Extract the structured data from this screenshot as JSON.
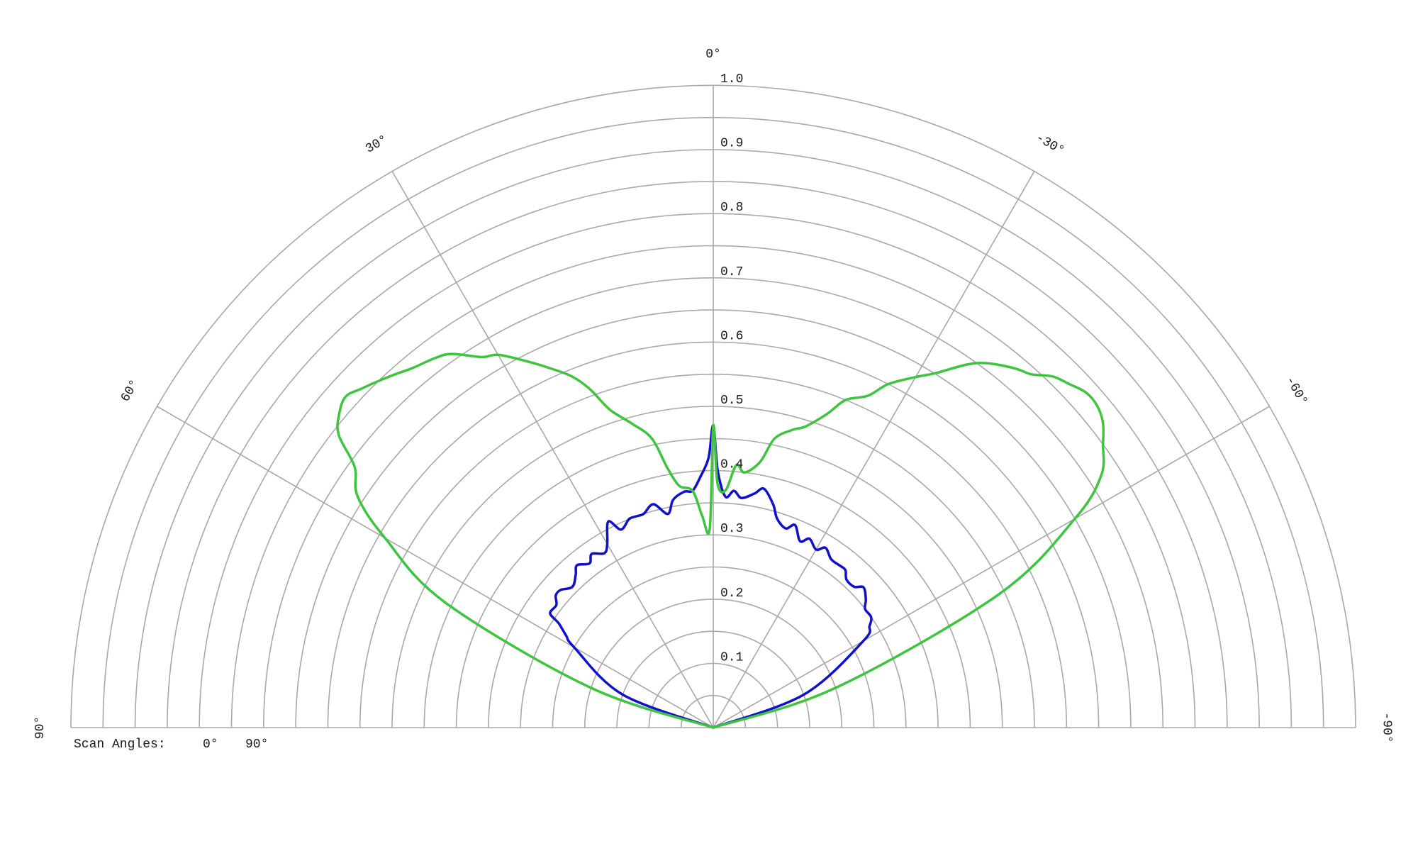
{
  "chart_data": {
    "type": "line",
    "subtype": "polar-half",
    "title": "",
    "radial_axis": {
      "range": [
        0,
        1.0
      ],
      "ticks": [
        0.1,
        0.2,
        0.3,
        0.4,
        0.5,
        0.6,
        0.7,
        0.8,
        0.9,
        1.0
      ],
      "tick_labels": [
        "0.1",
        "0.2",
        "0.3",
        "0.4",
        "0.5",
        "0.6",
        "0.7",
        "0.8",
        "0.9",
        "1.0"
      ]
    },
    "angular_axis": {
      "range_deg": [
        -90,
        90
      ],
      "direction": "counterclockwise-from-top",
      "ticks": [
        90,
        60,
        30,
        0,
        -30,
        -60,
        -90
      ],
      "tick_labels": [
        "90°",
        "60°",
        "30°",
        "0°",
        "-30°",
        "-60°",
        "-90°"
      ]
    },
    "grid": true,
    "legend": {
      "title": "Scan Angles:",
      "placement": "bottom-left"
    },
    "series": [
      {
        "name": "0°",
        "color": "#1010cc",
        "theta_deg": [
          90,
          70,
          60,
          58,
          56,
          55,
          52,
          50,
          48,
          45,
          42,
          40,
          37,
          35,
          32,
          30,
          27,
          25,
          22,
          20,
          18,
          15,
          12,
          10,
          7,
          5,
          3,
          1,
          0,
          -1,
          -3,
          -5,
          -7,
          -10,
          -12,
          -15,
          -17,
          -20,
          -22,
          -25,
          -27,
          -30,
          -32,
          -35,
          -38,
          -40,
          -42,
          -45,
          -47,
          -50,
          -52,
          -55,
          -57,
          -60,
          -70,
          -90
        ],
        "r": [
          0.0,
          0.15,
          0.25,
          0.27,
          0.29,
          0.31,
          0.31,
          0.32,
          0.32,
          0.31,
          0.32,
          0.33,
          0.32,
          0.33,
          0.32,
          0.33,
          0.36,
          0.34,
          0.35,
          0.35,
          0.35,
          0.36,
          0.34,
          0.36,
          0.37,
          0.37,
          0.39,
          0.42,
          0.47,
          0.4,
          0.36,
          0.37,
          0.36,
          0.37,
          0.38,
          0.36,
          0.34,
          0.33,
          0.34,
          0.32,
          0.33,
          0.32,
          0.33,
          0.32,
          0.32,
          0.32,
          0.31,
          0.31,
          0.32,
          0.31,
          0.3,
          0.3,
          0.29,
          0.27,
          0.15,
          0.0
        ]
      },
      {
        "name": "90°",
        "color": "#3ec43e",
        "theta_deg": [
          90,
          72,
          65,
          60,
          57,
          54,
          52,
          50,
          48,
          46,
          44,
          42,
          40,
          37,
          35,
          32,
          30,
          27,
          25,
          22,
          20,
          18,
          15,
          12,
          10,
          8,
          5,
          3,
          1,
          0,
          -1,
          -3,
          -5,
          -7,
          -10,
          -12,
          -15,
          -17,
          -20,
          -22,
          -25,
          -27,
          -30,
          -32,
          -35,
          -37,
          -40,
          -42,
          -44,
          -46,
          -48,
          -50,
          -52,
          -54,
          -57,
          -60,
          -65,
          -72,
          -90
        ],
        "r": [
          0.0,
          0.2,
          0.46,
          0.59,
          0.66,
          0.69,
          0.74,
          0.76,
          0.77,
          0.76,
          0.75,
          0.74,
          0.73,
          0.72,
          0.71,
          0.68,
          0.67,
          0.64,
          0.62,
          0.59,
          0.56,
          0.52,
          0.49,
          0.46,
          0.41,
          0.38,
          0.37,
          0.33,
          0.31,
          0.47,
          0.38,
          0.37,
          0.41,
          0.4,
          0.42,
          0.46,
          0.48,
          0.49,
          0.52,
          0.55,
          0.57,
          0.6,
          0.63,
          0.65,
          0.69,
          0.71,
          0.73,
          0.74,
          0.76,
          0.77,
          0.78,
          0.78,
          0.77,
          0.75,
          0.72,
          0.65,
          0.49,
          0.2,
          0.0
        ]
      }
    ]
  }
}
